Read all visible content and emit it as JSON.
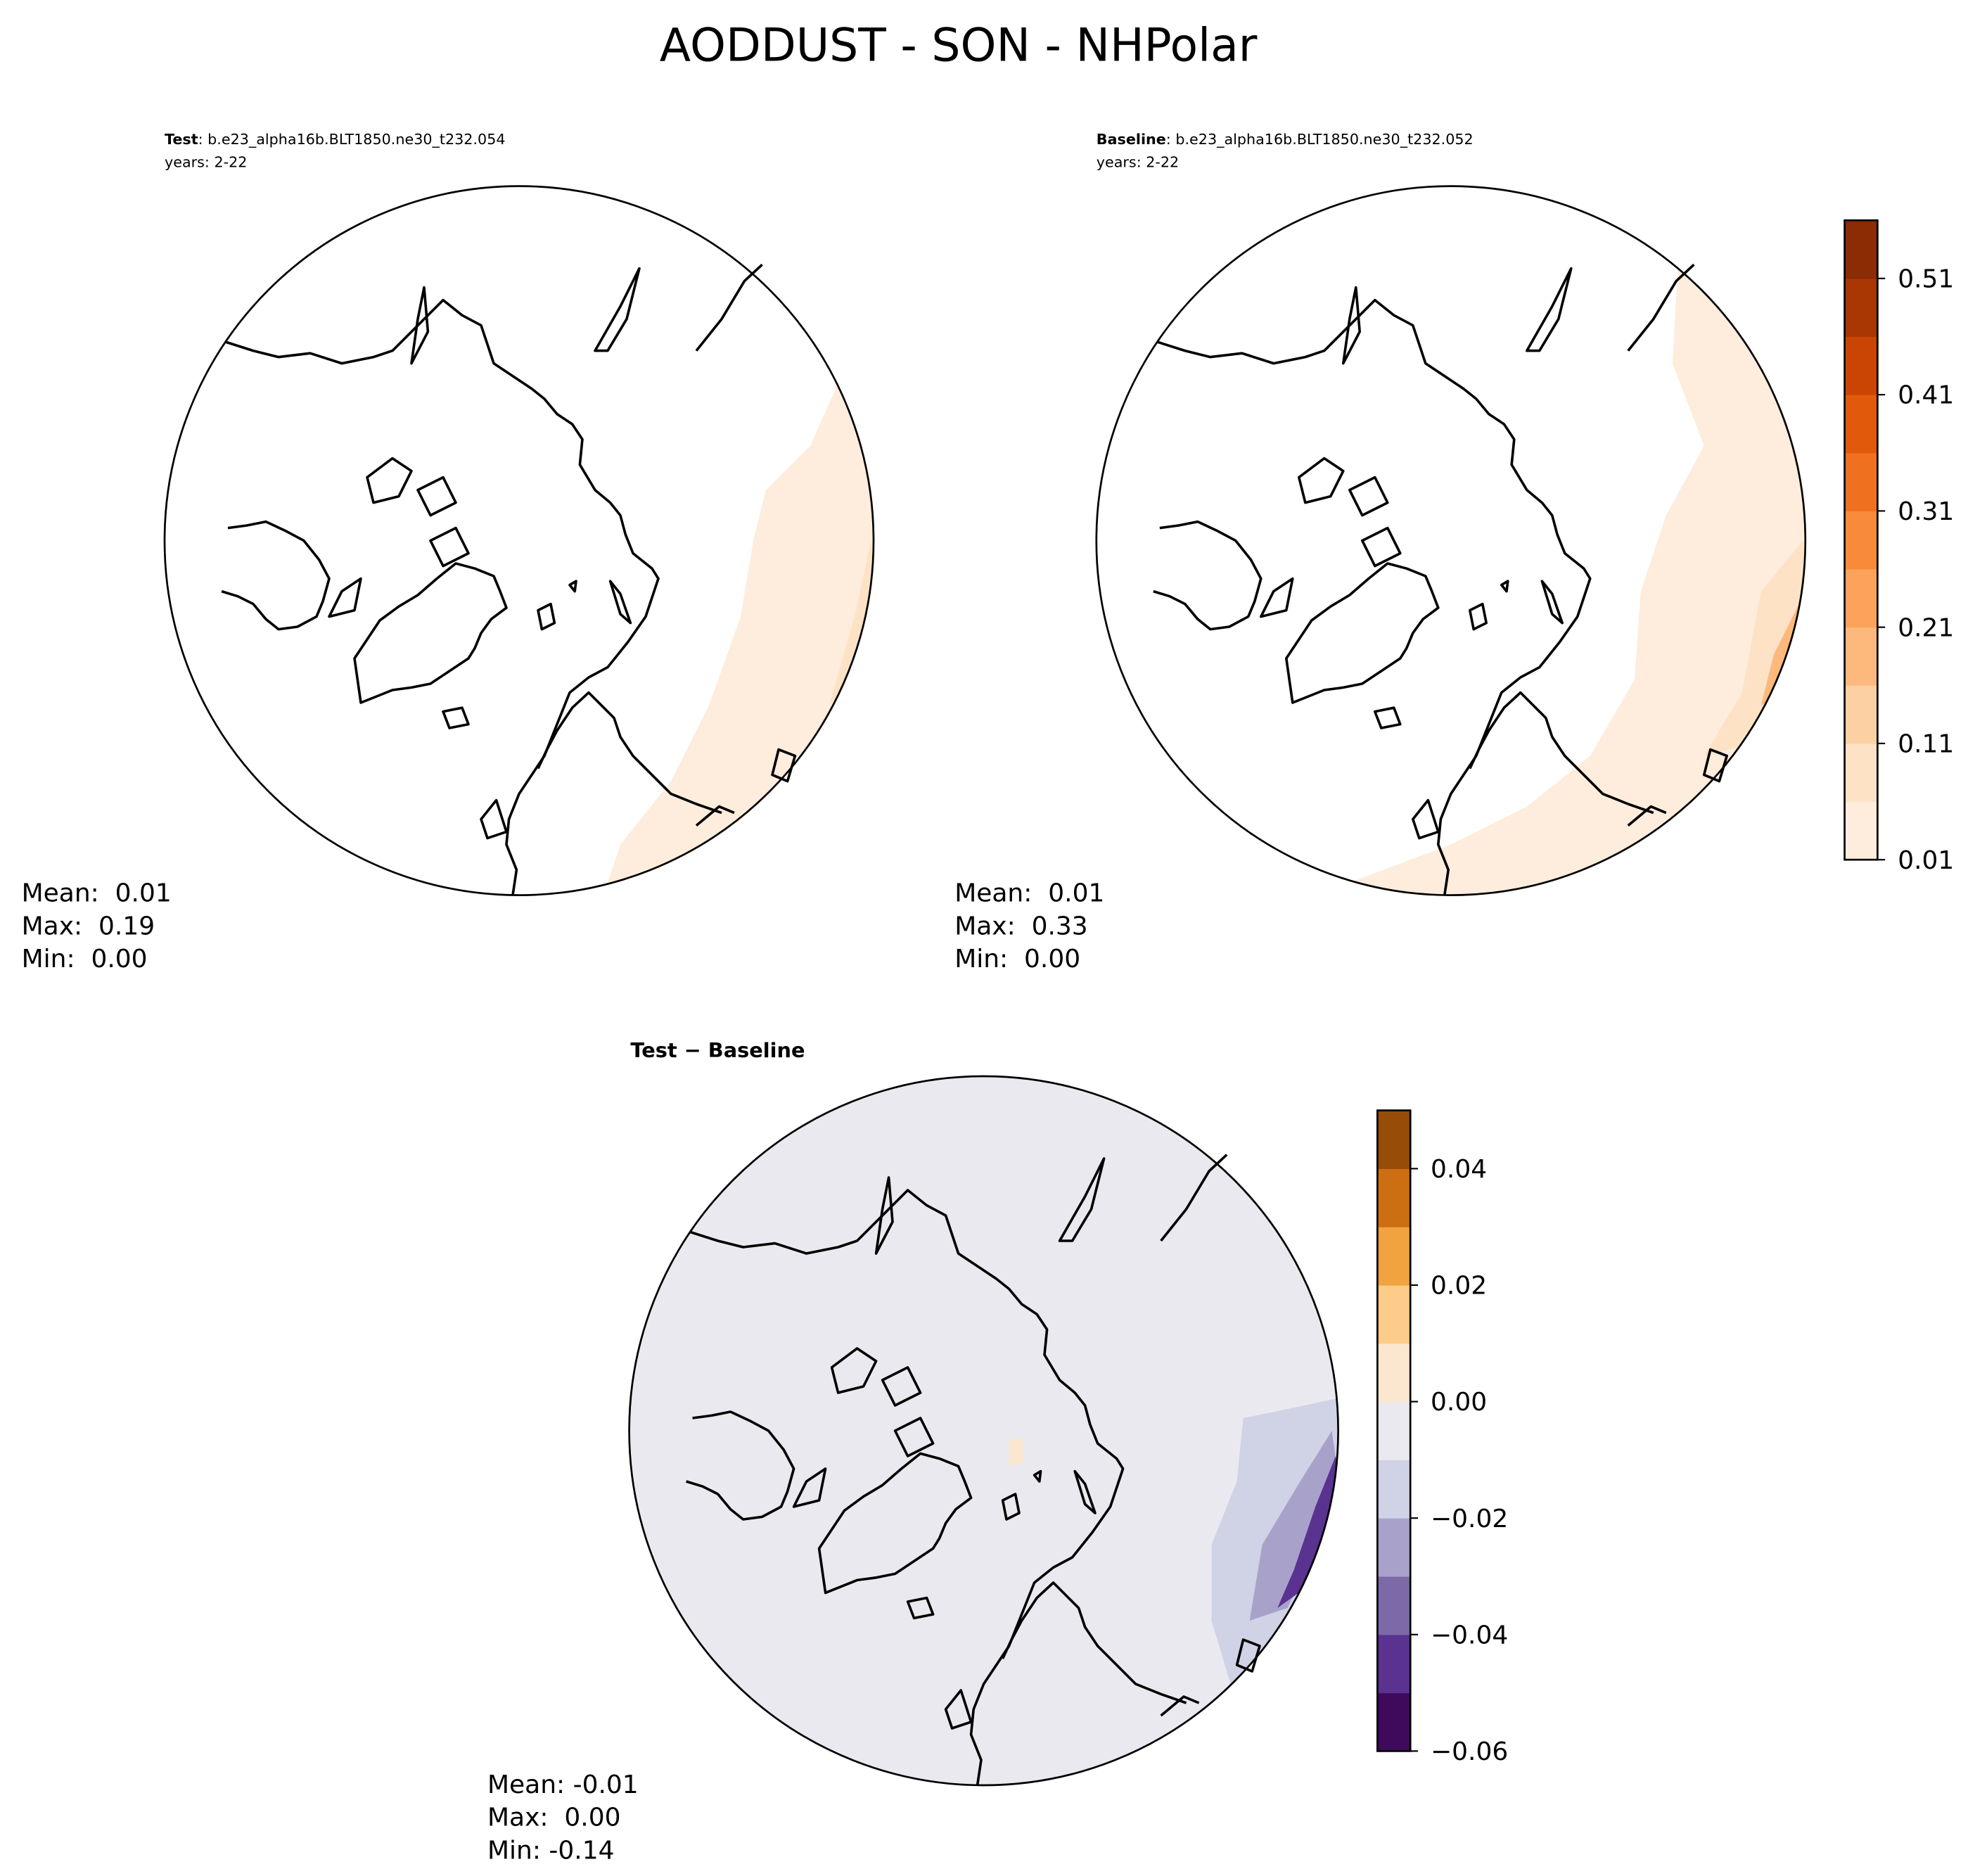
{
  "title": "AODDUST - SON - NHPolar",
  "panels": [
    {
      "label": "Test",
      "case": ": b.e23_alpha16b.BLT1850.ne30_t232.054",
      "years": "years: 2-22",
      "stats": [
        "Mean:  0.01",
        "Max:  0.19",
        "Min:  0.00"
      ]
    },
    {
      "label": "Baseline",
      "case": ": b.e23_alpha16b.BLT1850.ne30_t232.052",
      "years": "years: 2-22",
      "stats": [
        "Mean:  0.01",
        "Max:  0.33",
        "Min:  0.00"
      ]
    },
    {
      "label": "Test − Baseline",
      "stats": [
        "Mean: -0.01",
        "Max:  0.00",
        "Min: -0.14"
      ]
    }
  ],
  "colorbars": [
    {
      "lim": [
        0.01,
        0.56
      ],
      "ticks": [
        0.01,
        0.11,
        0.21,
        0.31,
        0.41,
        0.51
      ],
      "colors": [
        "#feeddc",
        "#fde2c6",
        "#fdd0a3",
        "#fdb97d",
        "#fda25a",
        "#f88b3a",
        "#ef711f",
        "#e15a0c",
        "#ca4503",
        "#a93703",
        "#8a2c04"
      ]
    },
    {
      "lim": [
        -0.06,
        0.05
      ],
      "ticks": [
        {
          "value": -0.06,
          "label": "−0.06"
        },
        {
          "value": -0.04,
          "label": "−0.04"
        },
        {
          "value": -0.02,
          "label": "−0.02"
        },
        {
          "value": 0,
          "label": "0.00"
        },
        0.02,
        0.04
      ],
      "colors": [
        "#3f0a5c",
        "#5a3290",
        "#7c6aa8",
        "#a8a2cb",
        "#d0d2e6",
        "#e9e9ef",
        "#fbe7cf",
        "#fdcb8a",
        "#f1a340",
        "#cc6e12",
        "#974c08"
      ]
    }
  ]
}
